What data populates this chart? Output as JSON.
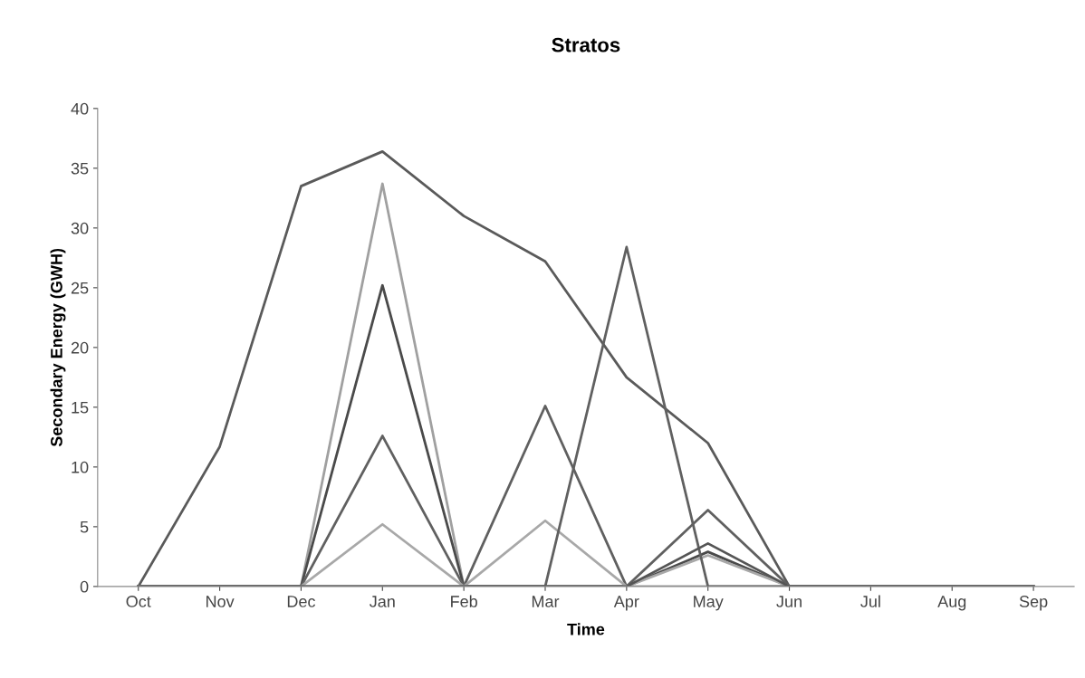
{
  "chart_data": {
    "type": "line",
    "title": "Stratos",
    "xlabel": "Time",
    "ylabel": "Secondary Energy (GWH)",
    "categories": [
      "Oct",
      "Nov",
      "Dec",
      "Jan",
      "Feb",
      "Mar",
      "Apr",
      "May",
      "Jun",
      "Jul",
      "Aug",
      "Sep"
    ],
    "series": [
      {
        "color": "#5a5a5a",
        "values": [
          0,
          11.7,
          33.5,
          36.4,
          31,
          27.2,
          17.5,
          12,
          0,
          0,
          0,
          0
        ]
      },
      {
        "color": "#a0a0a0",
        "values": [
          0,
          0,
          0,
          33.7,
          0,
          0,
          0,
          0,
          0,
          0,
          0,
          0
        ]
      },
      {
        "color": "#4a4a4a",
        "values": [
          0,
          0,
          0,
          25.2,
          0,
          0,
          0,
          2.9,
          0,
          0,
          0,
          0
        ]
      },
      {
        "color": "#606060",
        "values": [
          0,
          0,
          0,
          12.6,
          0,
          15.1,
          0,
          6.4,
          0,
          0,
          0,
          0
        ]
      },
      {
        "color": "#a8a8a8",
        "values": [
          0,
          0,
          0,
          5.2,
          0,
          5.5,
          0,
          2.6,
          0,
          0,
          0,
          0
        ]
      },
      {
        "color": "#606060",
        "values": [
          0,
          0,
          0,
          0,
          0,
          0,
          28.4,
          0,
          0,
          0,
          0,
          0
        ]
      },
      {
        "color": "#555555",
        "values": [
          0,
          0,
          0,
          0,
          0,
          0,
          0,
          3.6,
          0,
          0,
          0,
          0
        ]
      }
    ],
    "ylim": [
      0,
      40
    ],
    "yticks": [
      0,
      5,
      10,
      15,
      20,
      25,
      30,
      35,
      40
    ],
    "grid": false,
    "marker": "none",
    "line_style": "solid"
  }
}
